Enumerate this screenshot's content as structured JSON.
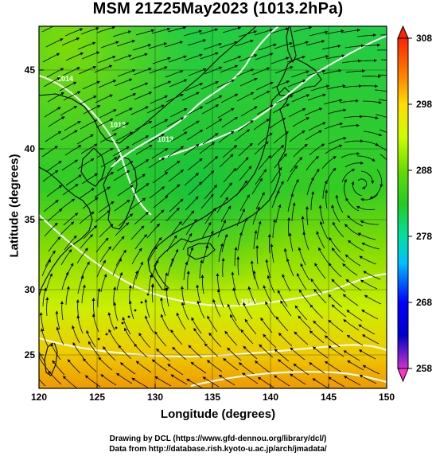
{
  "title": "MSM 21Z25May2023 (1013.2hPa)",
  "axes": {
    "xlabel": "Longitude (degrees)",
    "ylabel": "Latitude  (degrees)",
    "x_ticks": [
      "120",
      "125",
      "130",
      "135",
      "140",
      "145",
      "150"
    ],
    "y_ticks": [
      "45",
      "40",
      "35",
      "30",
      "25"
    ],
    "xlim": [
      120,
      150
    ],
    "ylim": [
      22.4,
      47.6
    ]
  },
  "colorbar": {
    "ticks": [
      "308",
      "298",
      "288",
      "278",
      "268",
      "258"
    ],
    "range": [
      258,
      308
    ],
    "colors": [
      "#cc33cc",
      "#0000ff",
      "#00c0ff",
      "#00e0a0",
      "#22cc22",
      "#66dd00",
      "#ccff00",
      "#ffdd00",
      "#ff8800",
      "#ff2200"
    ]
  },
  "contour_labels": [
    "1014",
    "1012",
    "1013",
    "1014"
  ],
  "credits": {
    "line1": "Drawing by DCL (https://www.gfd-dennou.org/library/dcl/)",
    "line2": "Data from http://database.rish.kyoto-u.ac.jp/arch/jmadata/"
  }
}
